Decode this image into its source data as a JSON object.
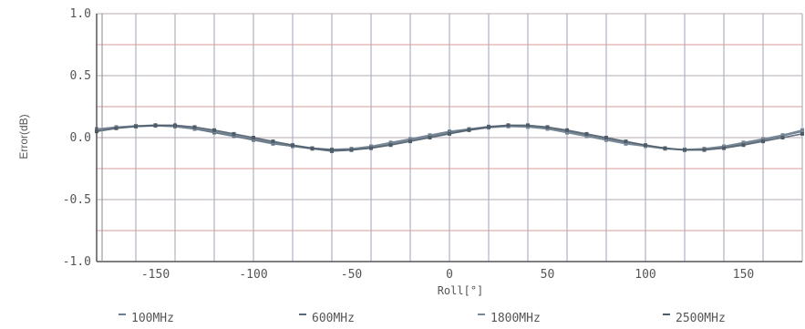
{
  "chart_data": {
    "type": "line",
    "xlabel": "Roll[°]",
    "ylabel": "Error(dB)",
    "xlim": [
      -180,
      180
    ],
    "ylim": [
      -1.0,
      1.0
    ],
    "x_ticks": [
      -150,
      -100,
      -50,
      0,
      50,
      100,
      150
    ],
    "y_ticks": [
      1.0,
      0.5,
      0.0,
      -0.5,
      -1.0
    ],
    "y_tick_labels": [
      "1.0",
      "0.5",
      "0.0",
      "-0.5",
      "-1.0"
    ],
    "grid": true,
    "legend_position": "bottom",
    "x": [
      -180,
      -170,
      -160,
      -150,
      -140,
      -130,
      -120,
      -110,
      -100,
      -90,
      -80,
      -70,
      -60,
      -50,
      -40,
      -30,
      -20,
      -10,
      0,
      10,
      20,
      30,
      40,
      50,
      60,
      70,
      80,
      90,
      100,
      110,
      120,
      130,
      140,
      150,
      160,
      170,
      180
    ],
    "series": [
      {
        "name": "100MHz",
        "color": "#6b7d8f",
        "values": [
          0.07,
          0.085,
          0.095,
          0.1,
          0.09,
          0.07,
          0.04,
          0.01,
          -0.02,
          -0.05,
          -0.07,
          -0.09,
          -0.1,
          -0.09,
          -0.07,
          -0.04,
          -0.01,
          0.02,
          0.05,
          0.07,
          0.09,
          0.1,
          0.09,
          0.07,
          0.04,
          0.01,
          -0.02,
          -0.05,
          -0.07,
          -0.09,
          -0.1,
          -0.09,
          -0.07,
          -0.04,
          -0.01,
          0.02,
          0.06
        ]
      },
      {
        "name": "600MHz",
        "color": "#5a6a7a",
        "values": [
          0.06,
          0.08,
          0.09,
          0.095,
          0.09,
          0.07,
          0.045,
          0.015,
          -0.015,
          -0.045,
          -0.07,
          -0.09,
          -0.11,
          -0.1,
          -0.08,
          -0.05,
          -0.02,
          0.01,
          0.04,
          0.065,
          0.085,
          0.095,
          0.09,
          0.075,
          0.05,
          0.02,
          -0.01,
          -0.04,
          -0.065,
          -0.085,
          -0.1,
          -0.095,
          -0.075,
          -0.05,
          -0.02,
          0.015,
          0.05
        ]
      },
      {
        "name": "1800MHz",
        "color": "#7a8896",
        "values": [
          0.06,
          0.08,
          0.095,
          0.1,
          0.095,
          0.075,
          0.05,
          0.02,
          -0.01,
          -0.04,
          -0.065,
          -0.085,
          -0.095,
          -0.09,
          -0.075,
          -0.05,
          -0.02,
          0.01,
          0.035,
          0.06,
          0.08,
          0.09,
          0.085,
          0.07,
          0.045,
          0.015,
          -0.015,
          -0.045,
          -0.07,
          -0.09,
          -0.095,
          -0.09,
          -0.07,
          -0.045,
          -0.015,
          0.02,
          0.055
        ]
      },
      {
        "name": "2500MHz",
        "color": "#4e5c6a",
        "values": [
          0.05,
          0.075,
          0.09,
          0.1,
          0.1,
          0.085,
          0.06,
          0.03,
          0.0,
          -0.03,
          -0.06,
          -0.085,
          -0.1,
          -0.1,
          -0.085,
          -0.06,
          -0.03,
          0.0,
          0.03,
          0.06,
          0.085,
          0.1,
          0.1,
          0.085,
          0.06,
          0.03,
          0.0,
          -0.03,
          -0.06,
          -0.085,
          -0.1,
          -0.1,
          -0.085,
          -0.06,
          -0.03,
          0.0,
          0.03
        ]
      }
    ]
  }
}
